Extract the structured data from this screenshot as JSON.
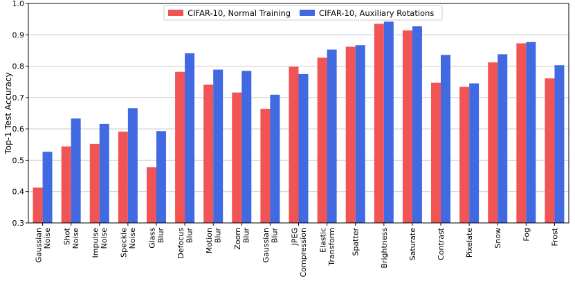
{
  "chart_data": {
    "type": "bar",
    "title": "",
    "xlabel": "",
    "ylabel": "Top-1 Test Accuracy",
    "ylim": [
      0.3,
      1.0
    ],
    "yticks": [
      "0.3",
      "0.4",
      "0.5",
      "0.6",
      "0.7",
      "0.8",
      "0.9",
      "1.0"
    ],
    "grid": "horizontal",
    "legend_position": "top-center",
    "categories": [
      [
        "Gaussian",
        "Noise"
      ],
      [
        "Shot",
        "Noise"
      ],
      [
        "Impulse",
        "Noise"
      ],
      [
        "Speckle",
        "Noise"
      ],
      [
        "Glass",
        "Blur"
      ],
      [
        "Defocus",
        "Blur"
      ],
      [
        "Motion",
        "Blur"
      ],
      [
        "Zoom",
        "Blur"
      ],
      [
        "Gaussian",
        "Blur"
      ],
      [
        "JPEG",
        "Compression"
      ],
      [
        "Elastic",
        "Transform"
      ],
      [
        "Spatter"
      ],
      [
        "Brightness"
      ],
      [
        "Saturate"
      ],
      [
        "Contrast"
      ],
      [
        "Pixelate"
      ],
      [
        "Snow"
      ],
      [
        "Fog"
      ],
      [
        "Frost"
      ]
    ],
    "series": [
      {
        "name": "CIFAR-10, Normal Training",
        "color": "#f05454",
        "values": [
          0.413,
          0.544,
          0.552,
          0.591,
          0.478,
          0.782,
          0.741,
          0.716,
          0.664,
          0.798,
          0.827,
          0.862,
          0.935,
          0.914,
          0.747,
          0.734,
          0.812,
          0.873,
          0.761
        ]
      },
      {
        "name": "CIFAR-10, Auxiliary Rotations",
        "color": "#4169e1",
        "values": [
          0.527,
          0.633,
          0.616,
          0.666,
          0.593,
          0.841,
          0.789,
          0.785,
          0.709,
          0.775,
          0.853,
          0.867,
          0.942,
          0.927,
          0.836,
          0.745,
          0.838,
          0.877,
          0.803
        ]
      }
    ]
  }
}
